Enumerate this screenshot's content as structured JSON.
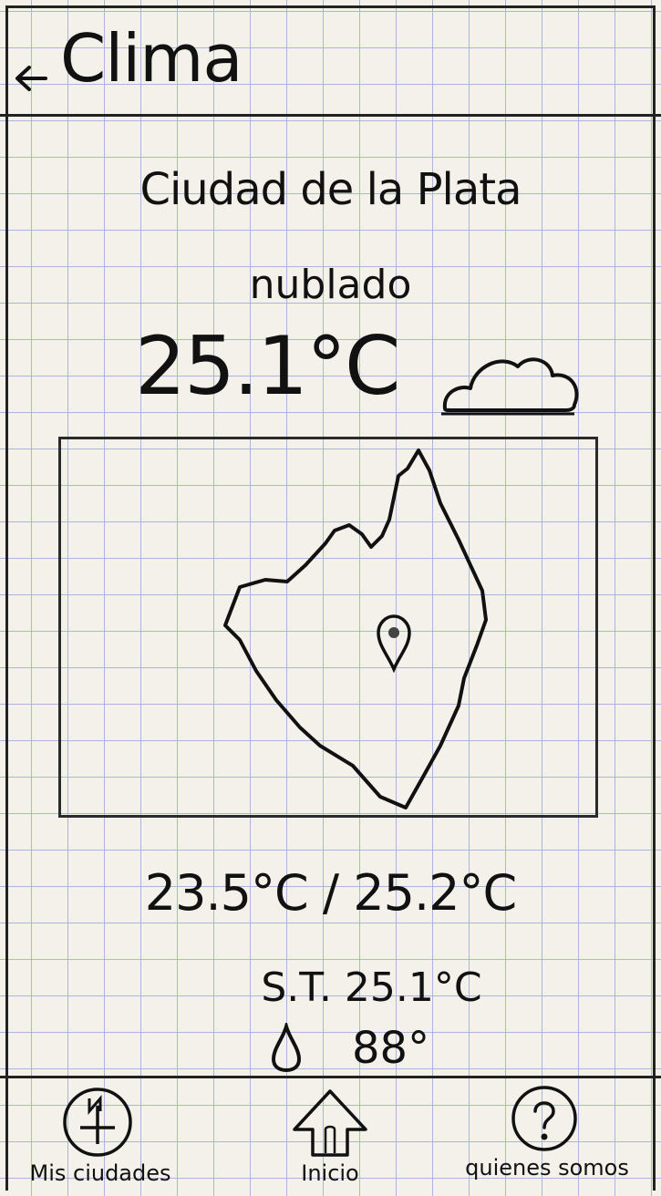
{
  "header": {
    "title": "Clima",
    "back_icon": "arrow-left-icon"
  },
  "weather": {
    "city": "Ciudad de la Plata",
    "condition": "nublado",
    "temperature": "25.1°C",
    "condition_icon": "cloud-icon",
    "min_max": "23.5°C / 25.2°C",
    "feels_like": "S.T. 25.1°C",
    "humidity_icon": "water-drop-icon",
    "humidity": "88°"
  },
  "map": {
    "marker_icon": "location-pin-icon"
  },
  "nav": {
    "items": [
      {
        "label": "Mis ciudades",
        "icon": "compass-icon"
      },
      {
        "label": "Inicio",
        "icon": "home-arrow-icon"
      },
      {
        "label": "quienes somos",
        "icon": "question-icon"
      }
    ]
  }
}
